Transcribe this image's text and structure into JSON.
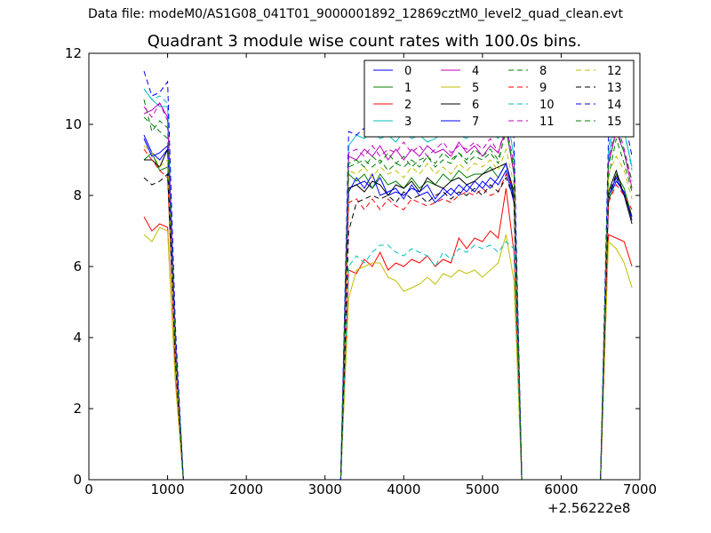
{
  "header": {
    "data_file": "Data file: modeM0/AS1G08_041T01_9000001892_12869cztM0_level2_quad_clean.evt"
  },
  "chart_data": {
    "type": "line",
    "title": "Quadrant 3 module wise count rates with 100.0s bins.",
    "xlabel": "",
    "ylabel": "",
    "x_offset_label": "+2.56222e8",
    "xlim": [
      0,
      7000
    ],
    "ylim": [
      0,
      12
    ],
    "xticks": [
      "0",
      "1000",
      "2000",
      "3000",
      "4000",
      "5000",
      "6000",
      "7000"
    ],
    "yticks": [
      "0",
      "2",
      "4",
      "6",
      "8",
      "10",
      "12"
    ],
    "grid": false,
    "legend_position": "top-right",
    "legend_columns": 4,
    "x": [
      700,
      800,
      900,
      1000,
      1100,
      1200,
      1300,
      2000,
      3100,
      3200,
      3300,
      3400,
      3500,
      3600,
      3700,
      3800,
      3900,
      4000,
      4100,
      4200,
      4300,
      4400,
      4500,
      4600,
      4700,
      4800,
      4900,
      5000,
      5100,
      5200,
      5300,
      5400,
      5500,
      5600,
      6400,
      6500,
      6600,
      6700,
      6800,
      6900
    ],
    "series": [
      {
        "name": "0",
        "color": "#0000ff",
        "dash": "solid",
        "values": [
          9.7,
          9.2,
          9.0,
          9.3,
          3.5,
          0,
          0,
          0,
          0,
          0,
          8.2,
          8.3,
          8.4,
          8.2,
          8.5,
          8.0,
          8.1,
          8.0,
          8.2,
          8.1,
          8.3,
          7.9,
          8.2,
          8.0,
          8.3,
          8.1,
          8.4,
          8.2,
          8.5,
          8.3,
          8.7,
          7.8,
          0,
          0,
          0,
          0,
          7.9,
          8.4,
          8.1,
          7.3
        ]
      },
      {
        "name": "1",
        "color": "#008000",
        "dash": "solid",
        "values": [
          9.0,
          9.2,
          8.7,
          8.8,
          3.4,
          0,
          0,
          0,
          0,
          0,
          8.6,
          8.4,
          8.6,
          8.2,
          8.6,
          8.3,
          8.4,
          8.2,
          8.5,
          8.2,
          8.4,
          8.3,
          8.6,
          8.4,
          8.7,
          8.5,
          8.6,
          8.6,
          8.8,
          8.5,
          8.9,
          8.0,
          0,
          0,
          0,
          0,
          7.8,
          8.6,
          8.2,
          7.4
        ]
      },
      {
        "name": "2",
        "color": "#ff0000",
        "dash": "solid",
        "values": [
          7.4,
          7.0,
          7.2,
          7.1,
          2.8,
          0,
          0,
          0,
          0,
          0,
          5.9,
          5.8,
          6.2,
          6.0,
          6.4,
          5.9,
          6.1,
          6.0,
          6.2,
          6.1,
          6.3,
          6.0,
          6.2,
          6.1,
          6.8,
          6.5,
          6.8,
          6.7,
          7.0,
          6.8,
          8.2,
          6.4,
          0,
          0,
          0,
          0,
          6.9,
          6.8,
          6.7,
          6.0
        ]
      },
      {
        "name": "3",
        "color": "#00bfbf",
        "dash": "solid",
        "values": [
          11.0,
          10.7,
          10.5,
          10.5,
          4.0,
          0,
          0,
          0,
          0,
          0,
          9.4,
          9.7,
          9.6,
          9.8,
          9.6,
          9.7,
          9.5,
          9.8,
          9.6,
          9.7,
          9.5,
          9.6,
          9.8,
          9.7,
          9.7,
          9.6,
          9.9,
          9.7,
          9.8,
          9.6,
          10.4,
          9.1,
          0,
          0,
          0,
          0,
          9.0,
          10.7,
          9.8,
          8.8
        ]
      },
      {
        "name": "4",
        "color": "#bf00bf",
        "dash": "solid",
        "values": [
          10.3,
          10.4,
          10.6,
          10.2,
          3.9,
          0,
          0,
          0,
          0,
          0,
          9.1,
          9.0,
          9.3,
          9.1,
          9.4,
          9.0,
          9.3,
          9.0,
          9.3,
          9.1,
          9.4,
          9.2,
          9.3,
          9.1,
          9.5,
          9.2,
          9.4,
          9.1,
          9.4,
          9.2,
          9.9,
          8.6,
          0,
          0,
          0,
          0,
          8.9,
          9.8,
          9.2,
          8.2
        ]
      },
      {
        "name": "5",
        "color": "#bfbf00",
        "dash": "solid",
        "values": [
          6.9,
          6.7,
          7.1,
          7.0,
          2.7,
          0,
          0,
          0,
          0,
          0,
          5.1,
          5.9,
          6.0,
          6.1,
          6.1,
          5.7,
          5.6,
          5.3,
          5.4,
          5.5,
          5.7,
          5.5,
          5.8,
          5.7,
          5.9,
          5.8,
          5.9,
          5.7,
          5.9,
          6.1,
          6.9,
          5.6,
          0,
          0,
          0,
          0,
          6.7,
          6.5,
          6.1,
          5.4
        ]
      },
      {
        "name": "6",
        "color": "#000000",
        "dash": "solid",
        "values": [
          9.0,
          9.0,
          8.8,
          9.3,
          3.5,
          0,
          0,
          0,
          0,
          0,
          8.2,
          8.3,
          8.1,
          8.4,
          8.3,
          8.0,
          8.3,
          8.2,
          8.4,
          8.1,
          8.5,
          8.3,
          8.2,
          8.4,
          8.5,
          8.3,
          8.4,
          8.6,
          8.7,
          8.8,
          8.9,
          8.1,
          0,
          0,
          0,
          0,
          8.1,
          8.7,
          8.0,
          7.2
        ]
      },
      {
        "name": "7",
        "color": "#0000ff",
        "dash": "solid",
        "values": [
          9.6,
          9.1,
          9.2,
          9.4,
          3.6,
          0,
          0,
          0,
          0,
          0,
          8.1,
          8.5,
          8.2,
          8.6,
          8.0,
          8.1,
          8.2,
          7.9,
          8.3,
          8.0,
          8.1,
          7.8,
          8.0,
          8.2,
          8.0,
          8.3,
          8.1,
          8.4,
          8.2,
          8.5,
          8.9,
          7.9,
          0,
          0,
          0,
          0,
          8.0,
          8.5,
          8.0,
          7.4
        ]
      },
      {
        "name": "8",
        "color": "#008000",
        "dash": "dashed",
        "values": [
          10.7,
          9.8,
          10.1,
          9.9,
          3.8,
          0,
          0,
          0,
          0,
          0,
          8.8,
          8.9,
          9.0,
          8.8,
          9.0,
          8.7,
          8.9,
          8.8,
          9.0,
          8.8,
          9.1,
          8.8,
          9.0,
          8.9,
          9.2,
          8.9,
          9.1,
          9.0,
          9.2,
          8.9,
          9.9,
          8.7,
          0,
          0,
          0,
          0,
          8.5,
          9.6,
          8.9,
          8.1
        ]
      },
      {
        "name": "9",
        "color": "#ff0000",
        "dash": "dashed",
        "values": [
          9.3,
          9.0,
          8.7,
          8.5,
          3.3,
          0,
          0,
          0,
          0,
          0,
          7.8,
          7.9,
          7.6,
          7.9,
          7.6,
          7.9,
          7.7,
          7.6,
          7.9,
          7.8,
          7.7,
          7.8,
          7.9,
          7.8,
          8.0,
          8.1,
          8.0,
          8.2,
          8.0,
          8.1,
          8.6,
          8.2,
          0,
          0,
          0,
          0,
          7.8,
          8.3,
          8.0,
          7.6
        ]
      },
      {
        "name": "10",
        "color": "#00bfbf",
        "dash": "dashed",
        "values": [
          11.0,
          10.7,
          10.8,
          10.6,
          4.0,
          0,
          0,
          0,
          0,
          0,
          6.0,
          6.3,
          6.1,
          6.4,
          6.6,
          6.6,
          6.4,
          6.3,
          6.5,
          6.4,
          6.3,
          6.0,
          6.4,
          6.2,
          6.5,
          6.4,
          6.6,
          6.5,
          6.6,
          6.4,
          6.7,
          6.5,
          0,
          0,
          0,
          0,
          9.3,
          10.7,
          9.9,
          8.7
        ]
      },
      {
        "name": "11",
        "color": "#bf00bf",
        "dash": "dashed",
        "values": [
          10.5,
          10.2,
          10.6,
          10.1,
          3.9,
          0,
          0,
          0,
          0,
          0,
          9.2,
          9.3,
          9.1,
          9.4,
          9.1,
          9.3,
          9.2,
          9.5,
          9.2,
          9.4,
          9.1,
          9.3,
          9.5,
          9.2,
          9.4,
          9.3,
          9.5,
          9.3,
          9.6,
          9.2,
          10.0,
          8.9,
          0,
          0,
          0,
          0,
          8.9,
          10.1,
          9.3,
          8.4
        ]
      },
      {
        "name": "12",
        "color": "#bfbf00",
        "dash": "dashed",
        "values": [
          9.4,
          9.2,
          8.8,
          9.0,
          3.5,
          0,
          0,
          0,
          0,
          0,
          8.7,
          8.6,
          8.8,
          8.5,
          8.8,
          8.6,
          8.7,
          8.5,
          8.8,
          8.6,
          8.9,
          8.6,
          8.8,
          8.6,
          8.9,
          8.7,
          8.9,
          8.8,
          9.0,
          8.7,
          9.3,
          8.3,
          0,
          0,
          0,
          0,
          8.6,
          9.1,
          8.7,
          7.9
        ]
      },
      {
        "name": "13",
        "color": "#000000",
        "dash": "dashed",
        "values": [
          8.5,
          8.3,
          8.4,
          8.6,
          3.3,
          0,
          0,
          0,
          0,
          0,
          7.0,
          7.8,
          7.9,
          8.0,
          7.9,
          8.0,
          7.8,
          8.1,
          7.9,
          8.0,
          7.8,
          8.0,
          8.1,
          7.9,
          8.1,
          8.0,
          8.2,
          8.0,
          8.3,
          8.1,
          8.5,
          7.9,
          0,
          0,
          0,
          0,
          8.0,
          8.6,
          8.0,
          7.4
        ]
      },
      {
        "name": "14",
        "color": "#0000ff",
        "dash": "dashed",
        "values": [
          11.5,
          10.8,
          10.9,
          11.2,
          4.3,
          0,
          0,
          0,
          0,
          0,
          9.8,
          9.7,
          9.9,
          10.0,
          10.2,
          9.9,
          10.3,
          10.1,
          10.3,
          9.9,
          10.2,
          10.0,
          10.4,
          10.1,
          10.3,
          10.0,
          10.4,
          10.2,
          10.5,
          10.1,
          10.9,
          9.6,
          0,
          0,
          0,
          0,
          9.6,
          11.0,
          10.2,
          9.1
        ]
      },
      {
        "name": "15",
        "color": "#008000",
        "dash": "dashed",
        "values": [
          10.2,
          10.0,
          9.8,
          9.6,
          3.7,
          0,
          0,
          0,
          0,
          0,
          8.9,
          9.0,
          8.8,
          9.1,
          8.9,
          9.2,
          8.9,
          9.1,
          8.8,
          9.0,
          9.1,
          8.9,
          9.2,
          9.0,
          9.2,
          9.0,
          9.3,
          9.1,
          9.3,
          9.0,
          9.8,
          8.8,
          0,
          0,
          0,
          0,
          8.8,
          9.9,
          9.2,
          8.4
        ]
      }
    ]
  }
}
